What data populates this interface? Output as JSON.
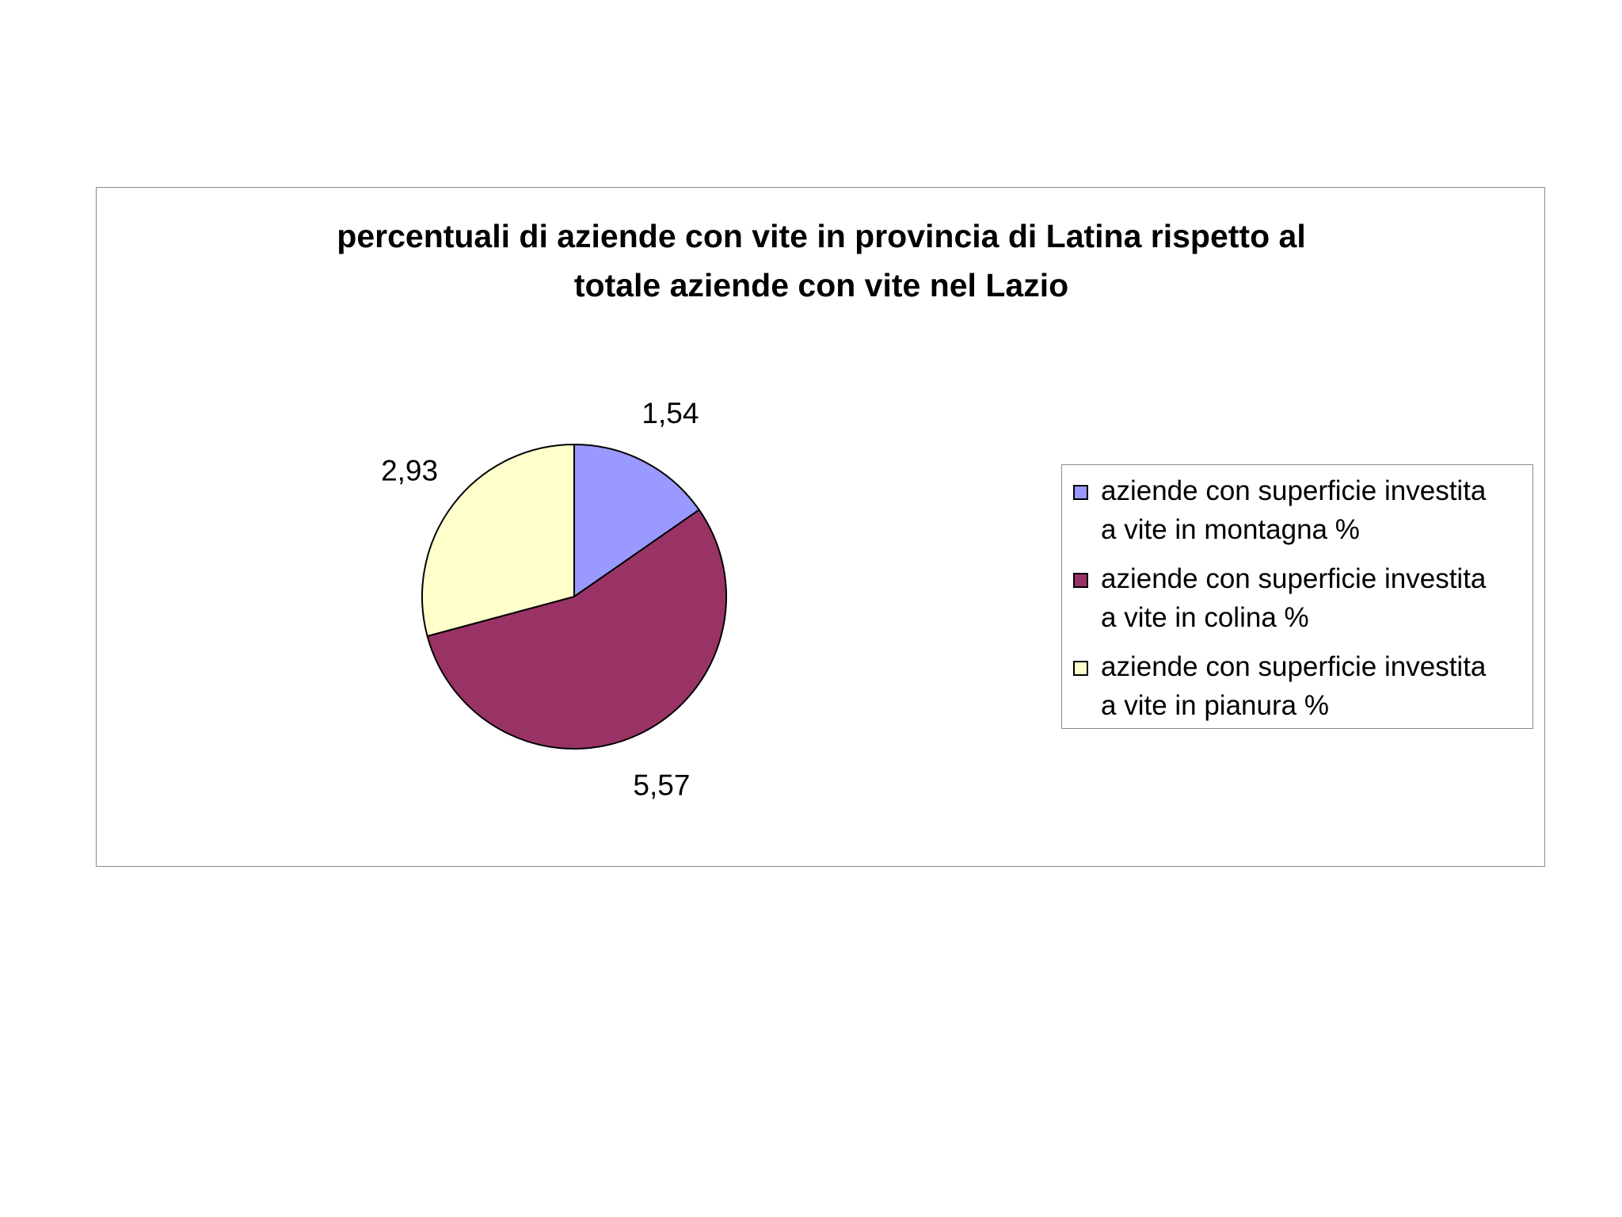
{
  "chart_data": {
    "type": "pie",
    "title_lines": [
      "percentuali di aziende con vite in provincia di Latina rispetto al",
      "totale aziende con vite nel Lazio"
    ],
    "categories": [
      "aziende con superficie investita a vite in montagna %",
      "aziende con superficie investita a vite in colina %",
      "aziende con superficie investita a vite in pianura %"
    ],
    "values": [
      1.54,
      5.57,
      2.93
    ],
    "value_labels": [
      "1,54",
      "5,57",
      "2,93"
    ],
    "colors": [
      "#9999ff",
      "#993366",
      "#ffffcc"
    ],
    "legend_position": "right",
    "legend_lines": [
      [
        "aziende con superficie investita",
        "a vite in montagna %"
      ],
      [
        "aziende con superficie investita",
        "a vite in colina %"
      ],
      [
        "aziende con superficie investita",
        "a vite in pianura %"
      ]
    ]
  }
}
